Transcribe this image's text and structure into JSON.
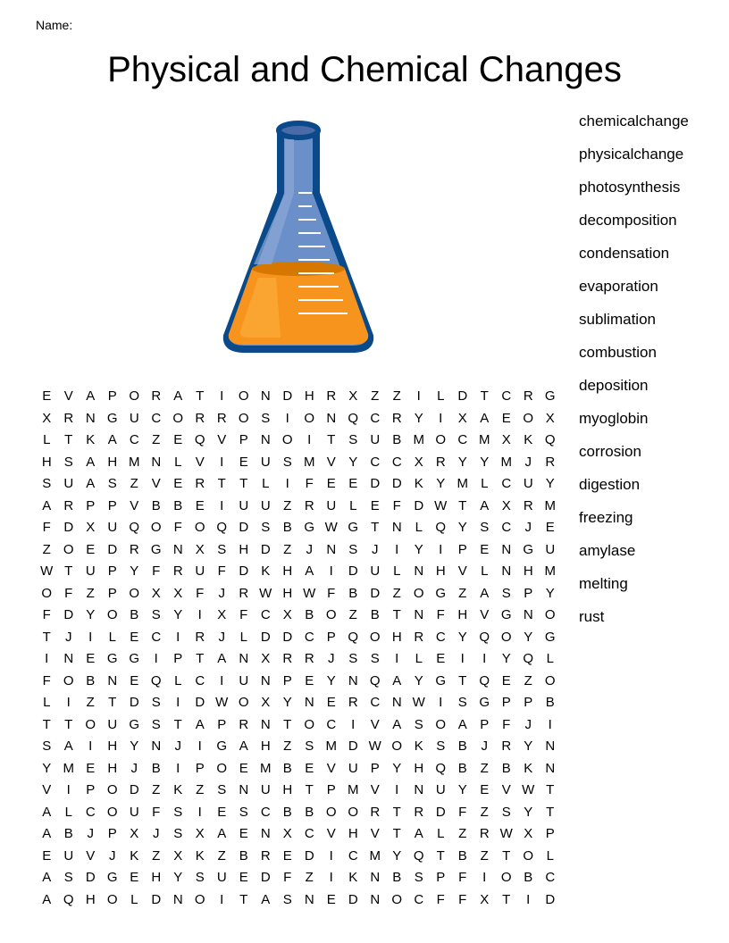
{
  "name_label": "Name:",
  "title": "Physical and Chemical Changes",
  "flask": {
    "body_fill": "#6b8fc9",
    "body_highlight": "#8ba8d6",
    "liquid_fill": "#f7941d",
    "liquid_highlight": "#fbb040",
    "outline": "#0a4a8a",
    "marking_color": "#ffffff"
  },
  "grid": {
    "rows": [
      [
        "E",
        "V",
        "A",
        "P",
        "O",
        "R",
        "A",
        "T",
        "I",
        "O",
        "N",
        "D",
        "H",
        "R",
        "X",
        "Z",
        "Z",
        "I",
        "L",
        "D",
        "T",
        "C",
        "R",
        "G"
      ],
      [
        "X",
        "R",
        "N",
        "G",
        "U",
        "C",
        "O",
        "R",
        "R",
        "O",
        "S",
        "I",
        "O",
        "N",
        "Q",
        "C",
        "R",
        "Y",
        "I",
        "X",
        "A",
        "E",
        "O",
        "X"
      ],
      [
        "L",
        "T",
        "K",
        "A",
        "C",
        "Z",
        "E",
        "Q",
        "V",
        "P",
        "N",
        "O",
        "I",
        "T",
        "S",
        "U",
        "B",
        "M",
        "O",
        "C",
        "M",
        "X",
        "K",
        "Q"
      ],
      [
        "H",
        "S",
        "A",
        "H",
        "M",
        "N",
        "L",
        "V",
        "I",
        "E",
        "U",
        "S",
        "M",
        "V",
        "Y",
        "C",
        "C",
        "X",
        "R",
        "Y",
        "Y",
        "M",
        "J",
        "R"
      ],
      [
        "S",
        "U",
        "A",
        "S",
        "Z",
        "V",
        "E",
        "R",
        "T",
        "T",
        "L",
        "I",
        "F",
        "E",
        "E",
        "D",
        "D",
        "K",
        "Y",
        "M",
        "L",
        "C",
        "U",
        "Y"
      ],
      [
        "A",
        "R",
        "P",
        "P",
        "V",
        "B",
        "B",
        "E",
        "I",
        "U",
        "U",
        "Z",
        "R",
        "U",
        "L",
        "E",
        "F",
        "D",
        "W",
        "T",
        "A",
        "X",
        "R",
        "M"
      ],
      [
        "F",
        "D",
        "X",
        "U",
        "Q",
        "O",
        "F",
        "O",
        "Q",
        "D",
        "S",
        "B",
        "G",
        "W",
        "G",
        "T",
        "N",
        "L",
        "Q",
        "Y",
        "S",
        "C",
        "J",
        "E"
      ],
      [
        "Z",
        "O",
        "E",
        "D",
        "R",
        "G",
        "N",
        "X",
        "S",
        "H",
        "D",
        "Z",
        "J",
        "N",
        "S",
        "J",
        "I",
        "Y",
        "I",
        "P",
        "E",
        "N",
        "G",
        "U"
      ],
      [
        "W",
        "T",
        "U",
        "P",
        "Y",
        "F",
        "R",
        "U",
        "F",
        "D",
        "K",
        "H",
        "A",
        "I",
        "D",
        "U",
        "L",
        "N",
        "H",
        "V",
        "L",
        "N",
        "H",
        "M"
      ],
      [
        "O",
        "F",
        "Z",
        "P",
        "O",
        "X",
        "X",
        "F",
        "J",
        "R",
        "W",
        "H",
        "W",
        "F",
        "B",
        "D",
        "Z",
        "O",
        "G",
        "Z",
        "A",
        "S",
        "P",
        "Y"
      ],
      [
        "F",
        "D",
        "Y",
        "O",
        "B",
        "S",
        "Y",
        "I",
        "X",
        "F",
        "C",
        "X",
        "B",
        "O",
        "Z",
        "B",
        "T",
        "N",
        "F",
        "H",
        "V",
        "G",
        "N",
        "O"
      ],
      [
        "T",
        "J",
        "I",
        "L",
        "E",
        "C",
        "I",
        "R",
        "J",
        "L",
        "D",
        "D",
        "C",
        "P",
        "Q",
        "O",
        "H",
        "R",
        "C",
        "Y",
        "Q",
        "O",
        "Y",
        "G"
      ],
      [
        "I",
        "N",
        "E",
        "G",
        "G",
        "I",
        "P",
        "T",
        "A",
        "N",
        "X",
        "R",
        "R",
        "J",
        "S",
        "S",
        "I",
        "L",
        "E",
        "I",
        "I",
        "Y",
        "Q",
        "L"
      ],
      [
        "F",
        "O",
        "B",
        "N",
        "E",
        "Q",
        "L",
        "C",
        "I",
        "U",
        "N",
        "P",
        "E",
        "Y",
        "N",
        "Q",
        "A",
        "Y",
        "G",
        "T",
        "Q",
        "E",
        "Z",
        "O"
      ],
      [
        "L",
        "I",
        "Z",
        "T",
        "D",
        "S",
        "I",
        "D",
        "W",
        "O",
        "X",
        "Y",
        "N",
        "E",
        "R",
        "C",
        "N",
        "W",
        "I",
        "S",
        "G",
        "P",
        "P",
        "B"
      ],
      [
        "T",
        "T",
        "O",
        "U",
        "G",
        "S",
        "T",
        "A",
        "P",
        "R",
        "N",
        "T",
        "O",
        "C",
        "I",
        "V",
        "A",
        "S",
        "O",
        "A",
        "P",
        "F",
        "J",
        "I"
      ],
      [
        "S",
        "A",
        "I",
        "H",
        "Y",
        "N",
        "J",
        "I",
        "G",
        "A",
        "H",
        "Z",
        "S",
        "M",
        "D",
        "W",
        "O",
        "K",
        "S",
        "B",
        "J",
        "R",
        "Y",
        "N"
      ],
      [
        "Y",
        "M",
        "E",
        "H",
        "J",
        "B",
        "I",
        "P",
        "O",
        "E",
        "M",
        "B",
        "E",
        "V",
        "U",
        "P",
        "Y",
        "H",
        "Q",
        "B",
        "Z",
        "B",
        "K",
        "N"
      ],
      [
        "V",
        "I",
        "P",
        "O",
        "D",
        "Z",
        "K",
        "Z",
        "S",
        "N",
        "U",
        "H",
        "T",
        "P",
        "M",
        "V",
        "I",
        "N",
        "U",
        "Y",
        "E",
        "V",
        "W",
        "T"
      ],
      [
        "A",
        "L",
        "C",
        "O",
        "U",
        "F",
        "S",
        "I",
        "E",
        "S",
        "C",
        "B",
        "B",
        "O",
        "O",
        "R",
        "T",
        "R",
        "D",
        "F",
        "Z",
        "S",
        "Y",
        "T"
      ],
      [
        "A",
        "B",
        "J",
        "P",
        "X",
        "J",
        "S",
        "X",
        "A",
        "E",
        "N",
        "X",
        "C",
        "V",
        "H",
        "V",
        "T",
        "A",
        "L",
        "Z",
        "R",
        "W",
        "X",
        "P"
      ],
      [
        "E",
        "U",
        "V",
        "J",
        "K",
        "Z",
        "X",
        "K",
        "Z",
        "B",
        "R",
        "E",
        "D",
        "I",
        "C",
        "M",
        "Y",
        "Q",
        "T",
        "B",
        "Z",
        "T",
        "O",
        "L"
      ],
      [
        "A",
        "S",
        "D",
        "G",
        "E",
        "H",
        "Y",
        "S",
        "U",
        "E",
        "D",
        "F",
        "Z",
        "I",
        "K",
        "N",
        "B",
        "S",
        "P",
        "F",
        "I",
        "O",
        "B",
        "C"
      ],
      [
        "A",
        "Q",
        "H",
        "O",
        "L",
        "D",
        "N",
        "O",
        "I",
        "T",
        "A",
        "S",
        "N",
        "E",
        "D",
        "N",
        "O",
        "C",
        "F",
        "F",
        "X",
        "T",
        "I",
        "D"
      ]
    ]
  },
  "words": [
    "chemicalchange",
    "physicalchange",
    "photosynthesis",
    "decomposition",
    "condensation",
    "evaporation",
    "sublimation",
    "combustion",
    "deposition",
    "myoglobin",
    "corrosion",
    "digestion",
    "freezing",
    "amylase",
    "melting",
    "rust"
  ]
}
